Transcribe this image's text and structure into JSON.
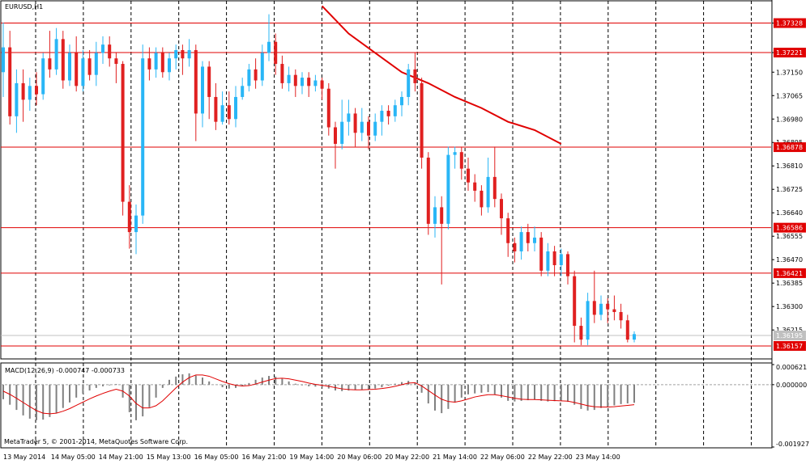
{
  "symbol": "EURUSD,H1",
  "macd_label": "MACD(12,26,9) -0.000747 -0.000733",
  "copyright": "MetaTrader 5, © 2001-2014, MetaQuotes Software Corp.",
  "colors": {
    "bull": "#29b6f6",
    "bear": "#e02020",
    "level": "#e00000",
    "ma": "#e00000",
    "grid": "#000000",
    "macd_hist": "#808080",
    "macd_signal": "#e00000"
  },
  "chart_data": [
    {
      "type": "candlestick",
      "title": "EURUSD,H1",
      "ylim": [
        1.3611,
        1.374
      ],
      "y_ticks": [
        "1.37328",
        "1.37221",
        "1.37150",
        "1.37065",
        "1.36980",
        "1.36895",
        "1.36810",
        "1.36725",
        "1.36640",
        "1.36555",
        "1.36470",
        "1.36385",
        "1.36300",
        "1.36215"
      ],
      "price_levels": [
        "1.37328",
        "1.37221",
        "1.36878",
        "1.36586",
        "1.36421",
        "1.36157"
      ],
      "current_price": "1.36195",
      "x_labels": [
        "13 May 2014",
        "14 May 05:00",
        "14 May 21:00",
        "15 May 13:00",
        "16 May 05:00",
        "16 May 21:00",
        "19 May 14:00",
        "20 May 06:00",
        "20 May 22:00",
        "21 May 14:00",
        "22 May 06:00",
        "22 May 22:00",
        "23 May 14:00"
      ],
      "moving_average": [
        [
          48,
          1.3739
        ],
        [
          52,
          1.3729
        ],
        [
          56,
          1.3722
        ],
        [
          60,
          1.3715
        ],
        [
          64,
          1.3711
        ],
        [
          68,
          1.3706
        ],
        [
          72,
          1.3702
        ],
        [
          76,
          1.3697
        ],
        [
          80,
          1.3694
        ],
        [
          84,
          1.3689
        ]
      ],
      "candles": [
        [
          0,
          1.3715,
          1.3724,
          1.3733,
          1.3706
        ],
        [
          1,
          1.3724,
          1.3699,
          1.373,
          1.3696
        ],
        [
          2,
          1.3699,
          1.3711,
          1.3716,
          1.3693
        ],
        [
          3,
          1.3711,
          1.3705,
          1.3716,
          1.3697
        ],
        [
          4,
          1.3705,
          1.371,
          1.3713,
          1.3701
        ],
        [
          5,
          1.371,
          1.3707,
          1.3715,
          1.3703
        ],
        [
          6,
          1.3707,
          1.372,
          1.3722,
          1.3705
        ],
        [
          7,
          1.372,
          1.3716,
          1.373,
          1.3713
        ],
        [
          8,
          1.3716,
          1.3727,
          1.3731,
          1.3714
        ],
        [
          9,
          1.3727,
          1.3712,
          1.373,
          1.3709
        ],
        [
          10,
          1.3712,
          1.3722,
          1.3725,
          1.371
        ],
        [
          11,
          1.3722,
          1.371,
          1.3728,
          1.3708
        ],
        [
          12,
          1.371,
          1.372,
          1.3723,
          1.3708
        ],
        [
          13,
          1.372,
          1.3714,
          1.3723,
          1.3712
        ],
        [
          14,
          1.3714,
          1.3722,
          1.3726,
          1.371
        ],
        [
          15,
          1.3722,
          1.3725,
          1.3728,
          1.3718
        ],
        [
          16,
          1.3725,
          1.372,
          1.3728,
          1.3717
        ],
        [
          17,
          1.372,
          1.3718,
          1.3722,
          1.3711
        ],
        [
          18,
          1.3718,
          1.3668,
          1.3719,
          1.3663
        ],
        [
          19,
          1.3668,
          1.3657,
          1.3674,
          1.3651
        ],
        [
          20,
          1.3657,
          1.3663,
          1.3667,
          1.3649
        ],
        [
          21,
          1.3663,
          1.372,
          1.3725,
          1.366
        ],
        [
          22,
          1.372,
          1.3716,
          1.3724,
          1.3712
        ],
        [
          23,
          1.3716,
          1.3722,
          1.3724,
          1.3713
        ],
        [
          24,
          1.3722,
          1.3715,
          1.3724,
          1.3713
        ],
        [
          25,
          1.3715,
          1.372,
          1.3722,
          1.3712
        ],
        [
          26,
          1.372,
          1.3723,
          1.3725,
          1.3716
        ],
        [
          27,
          1.3723,
          1.372,
          1.3725,
          1.3714
        ],
        [
          28,
          1.372,
          1.3723,
          1.3727,
          1.3717
        ],
        [
          29,
          1.3723,
          1.37,
          1.3725,
          1.369
        ],
        [
          30,
          1.37,
          1.3717,
          1.3719,
          1.3695
        ],
        [
          31,
          1.3717,
          1.3706,
          1.3719,
          1.3698
        ],
        [
          32,
          1.3706,
          1.3697,
          1.3711,
          1.3694
        ],
        [
          33,
          1.3697,
          1.3703,
          1.3708,
          1.3696
        ],
        [
          34,
          1.3703,
          1.3698,
          1.3708,
          1.3696
        ],
        [
          35,
          1.3698,
          1.3706,
          1.371,
          1.3695
        ],
        [
          36,
          1.3706,
          1.371,
          1.3713,
          1.3705
        ],
        [
          37,
          1.371,
          1.3716,
          1.3718,
          1.3708
        ],
        [
          38,
          1.3716,
          1.3712,
          1.372,
          1.3709
        ],
        [
          39,
          1.3712,
          1.3722,
          1.3725,
          1.371
        ],
        [
          40,
          1.3722,
          1.3726,
          1.3736,
          1.3719
        ],
        [
          41,
          1.3726,
          1.3718,
          1.3729,
          1.3714
        ],
        [
          42,
          1.3718,
          1.3711,
          1.3721,
          1.3709
        ],
        [
          43,
          1.3711,
          1.3714,
          1.3717,
          1.3708
        ],
        [
          44,
          1.3714,
          1.371,
          1.3716,
          1.3706
        ],
        [
          45,
          1.371,
          1.3713,
          1.3715,
          1.3707
        ],
        [
          46,
          1.3713,
          1.371,
          1.3715,
          1.3706
        ],
        [
          47,
          1.371,
          1.3712,
          1.3714,
          1.3708
        ],
        [
          48,
          1.3712,
          1.3709,
          1.3713,
          1.3705
        ],
        [
          49,
          1.3709,
          1.3695,
          1.3711,
          1.3692
        ],
        [
          50,
          1.3695,
          1.3689,
          1.3697,
          1.368
        ],
        [
          51,
          1.3689,
          1.3697,
          1.3705,
          1.3687
        ],
        [
          52,
          1.3697,
          1.37,
          1.3705,
          1.3692
        ],
        [
          53,
          1.37,
          1.3693,
          1.3702,
          1.3688
        ],
        [
          54,
          1.3693,
          1.3697,
          1.3702,
          1.369
        ],
        [
          55,
          1.3697,
          1.3692,
          1.3699,
          1.3687
        ],
        [
          56,
          1.3692,
          1.3697,
          1.37,
          1.369
        ],
        [
          57,
          1.3697,
          1.3701,
          1.3703,
          1.3692
        ],
        [
          58,
          1.3701,
          1.3699,
          1.3703,
          1.3696
        ],
        [
          59,
          1.3699,
          1.3703,
          1.3705,
          1.3697
        ],
        [
          60,
          1.3703,
          1.3706,
          1.3708,
          1.3699
        ],
        [
          61,
          1.3706,
          1.3716,
          1.3718,
          1.3703
        ],
        [
          62,
          1.3716,
          1.3711,
          1.3722,
          1.3708
        ],
        [
          63,
          1.3711,
          1.3684,
          1.3713,
          1.368
        ],
        [
          64,
          1.3684,
          1.366,
          1.3686,
          1.3656
        ],
        [
          65,
          1.366,
          1.3666,
          1.367,
          1.3655
        ],
        [
          66,
          1.3666,
          1.366,
          1.367,
          1.3638
        ],
        [
          67,
          1.366,
          1.3685,
          1.3688,
          1.3658
        ],
        [
          68,
          1.3685,
          1.3686,
          1.3688,
          1.368
        ],
        [
          69,
          1.3686,
          1.368,
          1.3688,
          1.3676
        ],
        [
          70,
          1.368,
          1.3675,
          1.3684,
          1.3672
        ],
        [
          71,
          1.3675,
          1.3672,
          1.3678,
          1.3668
        ],
        [
          72,
          1.3672,
          1.3666,
          1.3674,
          1.3663
        ],
        [
          73,
          1.3666,
          1.3677,
          1.3684,
          1.3664
        ],
        [
          74,
          1.3677,
          1.3669,
          1.3688,
          1.3666
        ],
        [
          75,
          1.3669,
          1.3662,
          1.3671,
          1.3656
        ],
        [
          76,
          1.3662,
          1.3653,
          1.3664,
          1.3648
        ],
        [
          77,
          1.3653,
          1.365,
          1.3655,
          1.3646
        ],
        [
          78,
          1.365,
          1.3657,
          1.3659,
          1.3647
        ],
        [
          79,
          1.3657,
          1.3653,
          1.366,
          1.365
        ],
        [
          80,
          1.3653,
          1.3655,
          1.3659,
          1.365
        ],
        [
          81,
          1.3655,
          1.3643,
          1.3657,
          1.3641
        ],
        [
          82,
          1.3643,
          1.365,
          1.3653,
          1.3641
        ],
        [
          83,
          1.365,
          1.3645,
          1.3652,
          1.3641
        ],
        [
          84,
          1.3645,
          1.3649,
          1.3651,
          1.3641
        ],
        [
          85,
          1.3649,
          1.3641,
          1.365,
          1.3638
        ],
        [
          86,
          1.3641,
          1.3623,
          1.3643,
          1.3617
        ],
        [
          87,
          1.3623,
          1.3618,
          1.3626,
          1.3616
        ],
        [
          88,
          1.3618,
          1.3632,
          1.3635,
          1.3616
        ],
        [
          89,
          1.3632,
          1.3627,
          1.3643,
          1.3624
        ],
        [
          90,
          1.3627,
          1.3631,
          1.3634,
          1.3625
        ],
        [
          91,
          1.3631,
          1.3629,
          1.3633,
          1.3624
        ],
        [
          92,
          1.3629,
          1.3628,
          1.3634,
          1.3625
        ],
        [
          93,
          1.3628,
          1.3625,
          1.3631,
          1.3622
        ],
        [
          94,
          1.3625,
          1.3618,
          1.3627,
          1.3617
        ],
        [
          95,
          1.3618,
          1.362,
          1.3621,
          1.3617
        ]
      ]
    },
    {
      "type": "bar",
      "title": "MACD(12,26,9) -0.000747 -0.000733",
      "ylim": [
        -0.001927,
        0.000621
      ],
      "y_ticks": [
        "0.000621",
        "0.000000",
        "-0.001927"
      ],
      "series": [
        {
          "values": [
            -0.00045,
            -0.00062,
            -0.00078,
            -0.00095,
            -0.00105,
            -0.0011,
            -0.00108,
            -0.001,
            -0.00088,
            -0.00072,
            -0.00055,
            -0.0004,
            -0.00028,
            -0.00018,
            -0.0001,
            -5e-05,
            -2e-05,
            2e-05,
            -0.0004,
            -0.00085,
            -0.0011,
            -0.00098,
            -0.0007,
            -0.0004,
            -0.0001,
            0.00015,
            0.00025,
            0.00032,
            0.00035,
            0.00028,
            0.00022,
            0.0001,
            0.0,
            -8e-05,
            -0.00012,
            -0.0001,
            -5e-05,
            5e-05,
            0.00015,
            0.00022,
            0.00027,
            0.00025,
            0.00018,
            0.0001,
            3e-05,
            -2e-05,
            -5e-05,
            -6e-05,
            -8e-05,
            -0.00012,
            -0.00018,
            -0.0002,
            -0.00018,
            -0.00016,
            -0.00015,
            -0.00014,
            -0.00012,
            -8e-05,
            -3e-05,
            3e-05,
            8e-05,
            0.00012,
            5e-05,
            -0.00025,
            -0.00058,
            -0.0008,
            -0.00088,
            -0.00075,
            -0.00055,
            -0.0004,
            -0.0003,
            -0.00027,
            -0.00025,
            -0.00023,
            -0.0003,
            -0.0004,
            -0.0005,
            -0.00052,
            -0.0005,
            -0.00048,
            -0.00046,
            -0.0005,
            -0.00052,
            -0.00051,
            -0.0005,
            -0.00053,
            -0.00062,
            -0.00075,
            -0.0008,
            -0.00078,
            -0.00072,
            -0.00068,
            -0.00064,
            -0.0006,
            -0.00058,
            -0.00056
          ]
        },
        {
          "values": [
            -0.0002,
            -0.0003,
            -0.00042,
            -0.00055,
            -0.00068,
            -0.0008,
            -0.00088,
            -0.0009,
            -0.00088,
            -0.00082,
            -0.00074,
            -0.00064,
            -0.00054,
            -0.00044,
            -0.00035,
            -0.00027,
            -0.0002,
            -0.00014,
            -0.0002,
            -0.00035,
            -0.00058,
            -0.00072,
            -0.00072,
            -0.00065,
            -0.0005,
            -0.0003,
            -0.0001,
            8e-05,
            0.00022,
            0.0003,
            0.0003,
            0.00026,
            0.00018,
            0.0001,
            3e-05,
            -2e-05,
            -4e-05,
            -3e-05,
            2e-05,
            8e-05,
            0.00014,
            0.00019,
            0.0002,
            0.00018,
            0.00014,
            0.0001,
            5e-05,
            1e-05,
            -2e-05,
            -5e-05,
            -9e-05,
            -0.00013,
            -0.00015,
            -0.00016,
            -0.00016,
            -0.00015,
            -0.00014,
            -0.00012,
            -9e-05,
            -5e-05,
            0.0,
            5e-05,
            6e-05,
            -4e-05,
            -0.00018,
            -0.00032,
            -0.00045,
            -0.00052,
            -0.00054,
            -0.0005,
            -0.00044,
            -0.00038,
            -0.00034,
            -0.00031,
            -0.00031,
            -0.00034,
            -0.00038,
            -0.00042,
            -0.00045,
            -0.00046,
            -0.00046,
            -0.00047,
            -0.00048,
            -0.00049,
            -0.0005,
            -0.00051,
            -0.00055,
            -0.0006,
            -0.00065,
            -0.00068,
            -0.00069,
            -0.00069,
            -0.00068,
            -0.00066,
            -0.00064,
            -0.00062
          ]
        }
      ]
    }
  ]
}
